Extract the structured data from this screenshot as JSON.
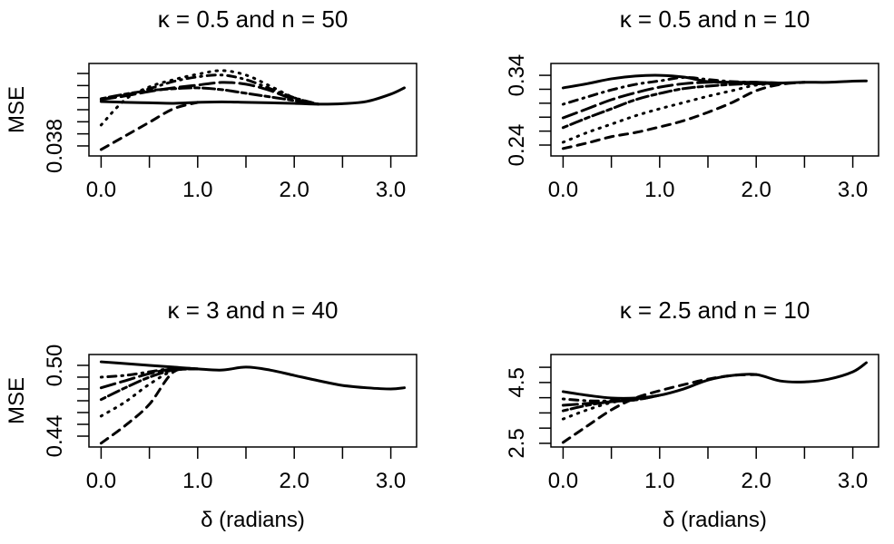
{
  "chart_data": [
    {
      "type": "line",
      "title": "κ = 0.5 and n = 50",
      "xlabel": "",
      "ylabel": "MSE",
      "xlim": [
        -0.126,
        3.267
      ],
      "ylim": [
        0.03717,
        0.04483
      ],
      "xticks": [
        0,
        0.5,
        1,
        1.5,
        2,
        2.5,
        3
      ],
      "xtick_labels": [
        "0.0",
        "",
        "1.0",
        "",
        "2.0",
        "",
        "3.0"
      ],
      "yticks": [
        0.038,
        0.039,
        0.04,
        0.041,
        0.042,
        0.043,
        0.044
      ],
      "ytick_labels": [
        "0.038",
        "",
        "",
        "",
        "",
        "",
        ""
      ],
      "series": [
        {
          "lty": "solid",
          "x": [
            0,
            0.25,
            0.5,
            0.75,
            1,
            1.25,
            1.5,
            1.75,
            2,
            2.25,
            2.5,
            2.75,
            3,
            3.14
          ],
          "y": [
            0.04168,
            0.04161,
            0.04157,
            0.04153,
            0.04161,
            0.04165,
            0.04161,
            0.04157,
            0.04153,
            0.04146,
            0.0415,
            0.04168,
            0.04229,
            0.04281
          ]
        },
        {
          "lty": "dashed",
          "x": [
            0,
            0.25,
            0.5,
            0.75,
            1
          ],
          "y": [
            0.0377,
            0.03883,
            0.03996,
            0.04108,
            0.04161
          ]
        },
        {
          "lty": "dotted",
          "x": [
            0,
            0.25,
            0.5,
            0.75,
            1,
            1.25,
            1.5,
            1.75,
            2,
            2.25
          ],
          "y": [
            0.03973,
            0.04184,
            0.04289,
            0.04349,
            0.04394,
            0.04424,
            0.04387,
            0.04296,
            0.04199,
            0.04146
          ]
        },
        {
          "lty": "dotdash",
          "x": [
            0,
            0.25,
            0.5,
            0.75,
            1,
            1.25,
            1.5,
            1.75,
            2,
            2.25
          ],
          "y": [
            0.04184,
            0.04221,
            0.04274,
            0.04334,
            0.04372,
            0.04387,
            0.04349,
            0.04274,
            0.04199,
            0.04146
          ]
        },
        {
          "lty": "longdash",
          "x": [
            0,
            0.25,
            0.5,
            0.75,
            1,
            1.25,
            1.5,
            1.75,
            2,
            2.25
          ],
          "y": [
            0.04184,
            0.04214,
            0.04251,
            0.04281,
            0.04304,
            0.04326,
            0.04311,
            0.04259,
            0.04184,
            0.04146
          ]
        },
        {
          "lty": "twodash",
          "x": [
            0,
            0.25,
            0.5,
            0.75,
            1,
            1.25,
            1.5,
            1.75,
            2,
            2.25
          ],
          "y": [
            0.04191,
            0.04229,
            0.04259,
            0.04274,
            0.04281,
            0.04266,
            0.04236,
            0.04206,
            0.04176,
            0.04146
          ]
        }
      ]
    },
    {
      "type": "line",
      "title": "κ = 0.5 and n = 10",
      "xlabel": "",
      "ylabel": "",
      "xlim": [
        -0.126,
        3.267
      ],
      "ylim": [
        0.2244,
        0.357
      ],
      "xticks": [
        0,
        0.5,
        1,
        1.5,
        2,
        2.5,
        3
      ],
      "xtick_labels": [
        "0.0",
        "",
        "1.0",
        "",
        "2.0",
        "",
        "3.0"
      ],
      "yticks": [
        0.24,
        0.26,
        0.28,
        0.3,
        0.32,
        0.34
      ],
      "ytick_labels": [
        "0.24",
        "",
        "",
        "",
        "",
        "0.34"
      ],
      "series": [
        {
          "lty": "solid",
          "x": [
            0,
            0.25,
            0.5,
            0.75,
            1,
            1.25,
            1.5,
            1.75,
            2,
            2.25,
            2.5,
            2.75,
            3,
            3.14
          ],
          "y": [
            0.322,
            0.328,
            0.335,
            0.339,
            0.34,
            0.3375,
            0.331,
            0.33,
            0.33,
            0.329,
            0.33,
            0.33,
            0.3317,
            0.332
          ]
        },
        {
          "lty": "dashed",
          "x": [
            0,
            0.25,
            0.5,
            0.75,
            1,
            1.25,
            1.5,
            1.75,
            2,
            2.25,
            2.5
          ],
          "y": [
            0.235,
            0.243,
            0.252,
            0.258,
            0.266,
            0.275,
            0.287,
            0.301,
            0.318,
            0.327,
            0.33
          ]
        },
        {
          "lty": "dotted",
          "x": [
            0,
            0.25,
            0.5,
            0.75,
            1,
            1.25,
            1.5,
            1.75,
            2,
            2.25,
            2.5
          ],
          "y": [
            0.244,
            0.258,
            0.27,
            0.282,
            0.292,
            0.301,
            0.31,
            0.318,
            0.326,
            0.328,
            0.33
          ]
        },
        {
          "lty": "dotdash",
          "x": [
            0,
            0.25,
            0.5,
            0.75,
            1,
            1.25,
            1.5,
            1.75,
            2,
            2.25
          ],
          "y": [
            0.2985,
            0.309,
            0.319,
            0.327,
            0.332,
            0.337,
            0.334,
            0.331,
            0.33,
            0.329
          ]
        },
        {
          "lty": "longdash",
          "x": [
            0,
            0.25,
            0.5,
            0.75,
            1,
            1.25,
            1.5,
            1.75,
            2,
            2.25
          ],
          "y": [
            0.279,
            0.292,
            0.305,
            0.315,
            0.323,
            0.328,
            0.33,
            0.33,
            0.328,
            0.329
          ]
        },
        {
          "lty": "twodash",
          "x": [
            0,
            0.25,
            0.5,
            0.75,
            1,
            1.25,
            1.5,
            1.75,
            2,
            2.25
          ],
          "y": [
            0.265,
            0.279,
            0.292,
            0.305,
            0.314,
            0.321,
            0.3245,
            0.327,
            0.328,
            0.328
          ]
        }
      ]
    },
    {
      "type": "line",
      "title": "κ = 3 and n = 40",
      "xlabel": "δ (radians)",
      "ylabel": "MSE",
      "xlim": [
        -0.126,
        3.267
      ],
      "ylim": [
        0.4308,
        0.5092
      ],
      "xticks": [
        0,
        0.5,
        1,
        1.5,
        2,
        2.5,
        3
      ],
      "xtick_labels": [
        "0.0",
        "",
        "1.0",
        "",
        "2.0",
        "",
        "3.0"
      ],
      "yticks": [
        0.44,
        0.45,
        0.46,
        0.47,
        0.48,
        0.49,
        0.5
      ],
      "ytick_labels": [
        "0.44",
        "",
        "",
        "",
        "",
        "",
        "0.50"
      ],
      "series": [
        {
          "lty": "solid",
          "x": [
            0,
            0.25,
            0.5,
            0.75,
            1,
            1.25,
            1.5,
            1.75,
            2,
            2.25,
            2.5,
            2.75,
            3,
            3.14
          ],
          "y": [
            0.503,
            0.5015,
            0.5,
            0.4985,
            0.497,
            0.496,
            0.4985,
            0.496,
            0.4915,
            0.487,
            0.483,
            0.481,
            0.48,
            0.481
          ]
        },
        {
          "lty": "dashed",
          "x": [
            0,
            0.25,
            0.5,
            0.75,
            1
          ],
          "y": [
            0.434,
            0.449,
            0.467,
            0.4945,
            0.497
          ]
        },
        {
          "lty": "dotted",
          "x": [
            0,
            0.25,
            0.5,
            0.75,
            1
          ],
          "y": [
            0.457,
            0.469,
            0.484,
            0.4955,
            0.497
          ]
        },
        {
          "lty": "dotdash",
          "x": [
            0,
            0.25,
            0.5,
            0.75,
            1
          ],
          "y": [
            0.49,
            0.4915,
            0.4945,
            0.4975,
            0.497
          ]
        },
        {
          "lty": "longdash",
          "x": [
            0,
            0.25,
            0.5,
            0.75,
            1
          ],
          "y": [
            0.481,
            0.487,
            0.493,
            0.497,
            0.497
          ]
        },
        {
          "lty": "twodash",
          "x": [
            0,
            0.25,
            0.5,
            0.75,
            1
          ],
          "y": [
            0.471,
            0.481,
            0.49,
            0.496,
            0.497
          ]
        }
      ]
    },
    {
      "type": "line",
      "title": "κ = 2.5 and n = 10",
      "xlabel": "δ (radians)",
      "ylabel": "",
      "xlim": [
        -0.126,
        3.267
      ],
      "ylim": [
        2.38,
        5.42
      ],
      "xticks": [
        0,
        0.5,
        1,
        1.5,
        2,
        2.5,
        3
      ],
      "xtick_labels": [
        "0.0",
        "",
        "1.0",
        "",
        "2.0",
        "",
        "3.0"
      ],
      "yticks": [
        2.5,
        3.0,
        3.5,
        4.0,
        4.5,
        5.0
      ],
      "ytick_labels": [
        "2.5",
        "",
        "",
        "",
        "4.5",
        ""
      ],
      "series": [
        {
          "lty": "solid",
          "x": [
            0,
            0.25,
            0.5,
            0.75,
            1,
            1.25,
            1.5,
            1.75,
            2,
            2.25,
            2.5,
            2.75,
            3,
            3.14
          ],
          "y": [
            4.2,
            4.08,
            3.99,
            3.99,
            4.08,
            4.29,
            4.58,
            4.73,
            4.76,
            4.55,
            4.52,
            4.61,
            4.85,
            5.15
          ]
        },
        {
          "lty": "dashed",
          "x": [
            0,
            0.25,
            0.5,
            0.75,
            1,
            1.25,
            1.5,
            1.75,
            2
          ],
          "y": [
            2.53,
            3.07,
            3.6,
            3.99,
            4.23,
            4.43,
            4.61,
            4.73,
            4.76
          ]
        },
        {
          "lty": "dotted",
          "x": [
            0,
            0.25,
            0.5,
            0.75,
            1
          ],
          "y": [
            3.3,
            3.6,
            3.84,
            3.96,
            4.08
          ]
        },
        {
          "lty": "dotdash",
          "x": [
            0,
            0.25,
            0.5,
            0.75,
            1
          ],
          "y": [
            3.96,
            3.9,
            3.9,
            3.96,
            4.08
          ]
        },
        {
          "lty": "longdash",
          "x": [
            0,
            0.25,
            0.5,
            0.75,
            1
          ],
          "y": [
            3.75,
            3.81,
            3.87,
            3.93,
            4.08
          ]
        },
        {
          "lty": "twodash",
          "x": [
            0,
            0.25,
            0.5,
            0.75,
            1
          ],
          "y": [
            3.57,
            3.75,
            3.87,
            3.93,
            4.08
          ]
        }
      ]
    }
  ]
}
